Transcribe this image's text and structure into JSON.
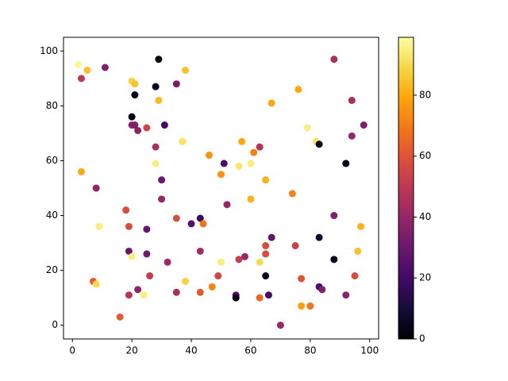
{
  "chart_data": {
    "type": "scatter",
    "x": [
      2,
      5,
      3,
      11,
      29,
      38,
      20,
      21,
      28,
      35,
      21,
      29,
      76,
      20,
      20,
      21,
      22,
      25,
      31,
      67,
      94,
      98,
      79,
      94,
      37,
      28,
      57,
      63,
      82,
      83,
      46,
      61,
      28,
      51,
      56,
      60,
      92,
      3,
      30,
      50,
      65,
      8,
      30,
      60,
      74,
      52,
      18,
      88,
      35,
      43,
      40,
      44,
      9,
      19,
      25,
      67,
      83,
      97,
      19,
      20,
      25,
      43,
      58,
      65,
      65,
      75,
      50,
      63,
      88,
      96,
      32,
      56,
      7,
      8,
      26,
      38,
      49,
      65,
      77,
      95,
      22,
      24,
      19,
      35,
      43,
      47,
      55,
      55,
      63,
      66,
      83,
      84,
      92,
      77,
      80,
      16,
      70,
      88
    ],
    "y": [
      95,
      93,
      90,
      94,
      97,
      93,
      89,
      88,
      87,
      88,
      84,
      82,
      86,
      76,
      73,
      73,
      71,
      72,
      73,
      81,
      82,
      73,
      72,
      69,
      67,
      65,
      67,
      65,
      67,
      66,
      62,
      63,
      59,
      59,
      58,
      59,
      59,
      56,
      53,
      55,
      53,
      50,
      46,
      46,
      48,
      44,
      42,
      40,
      39,
      39,
      37,
      37,
      36,
      36,
      35,
      32,
      32,
      36,
      27,
      25,
      26,
      27,
      25,
      29,
      26,
      29,
      23,
      23,
      24,
      27,
      23,
      24,
      16,
      15,
      18,
      16,
      18,
      18,
      17,
      18,
      13,
      11,
      11,
      12,
      12,
      14,
      11,
      10,
      10,
      11,
      14,
      13,
      11,
      7,
      7,
      3,
      0,
      97
    ],
    "c": [
      97,
      85,
      50,
      35,
      2,
      85,
      88,
      85,
      5,
      33,
      5,
      83,
      80,
      3,
      38,
      35,
      38,
      55,
      20,
      80,
      45,
      35,
      95,
      40,
      92,
      45,
      80,
      48,
      92,
      5,
      75,
      72,
      95,
      22,
      93,
      95,
      5,
      80,
      30,
      75,
      82,
      38,
      40,
      82,
      72,
      40,
      58,
      35,
      58,
      18,
      25,
      68,
      95,
      58,
      28,
      28,
      8,
      82,
      30,
      95,
      30,
      43,
      40,
      58,
      58,
      53,
      95,
      90,
      5,
      85,
      42,
      52,
      62,
      90,
      52,
      88,
      55,
      5,
      60,
      58,
      38,
      95,
      48,
      45,
      62,
      72,
      25,
      3,
      65,
      20,
      22,
      35,
      38,
      78,
      68,
      62,
      40,
      45
    ],
    "colormap": "inferno",
    "clim": [
      0,
      99
    ],
    "xlim": [
      -3,
      103
    ],
    "ylim": [
      -5,
      105
    ],
    "xticks": [
      0,
      20,
      40,
      60,
      80,
      100
    ],
    "yticks": [
      0,
      20,
      40,
      60,
      80,
      100
    ],
    "colorbar_ticks": [
      0,
      20,
      40,
      60,
      80
    ]
  }
}
